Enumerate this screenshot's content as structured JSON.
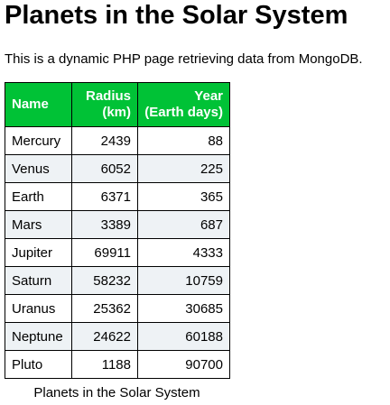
{
  "page": {
    "title": "Planets in the Solar System",
    "intro": "This is a dynamic PHP page retrieving data from MongoDB.",
    "caption": "Planets in the Solar System"
  },
  "table": {
    "headers": {
      "name": "Name",
      "radius_line1": "Radius",
      "radius_line2": "(km)",
      "year_line1": "Year",
      "year_line2": "(Earth days)"
    },
    "rows": [
      {
        "name": "Mercury",
        "radius": "2439",
        "year": "88"
      },
      {
        "name": "Venus",
        "radius": "6052",
        "year": "225"
      },
      {
        "name": "Earth",
        "radius": "6371",
        "year": "365"
      },
      {
        "name": "Mars",
        "radius": "3389",
        "year": "687"
      },
      {
        "name": "Jupiter",
        "radius": "69911",
        "year": "4333"
      },
      {
        "name": "Saturn",
        "radius": "58232",
        "year": "10759"
      },
      {
        "name": "Uranus",
        "radius": "25362",
        "year": "30685"
      },
      {
        "name": "Neptune",
        "radius": "24622",
        "year": "60188"
      },
      {
        "name": "Pluto",
        "radius": "1188",
        "year": "90700"
      }
    ]
  },
  "colors": {
    "header_background": "#00c236",
    "header_text": "#ffffff",
    "alternate_row": "#eef2f5"
  }
}
